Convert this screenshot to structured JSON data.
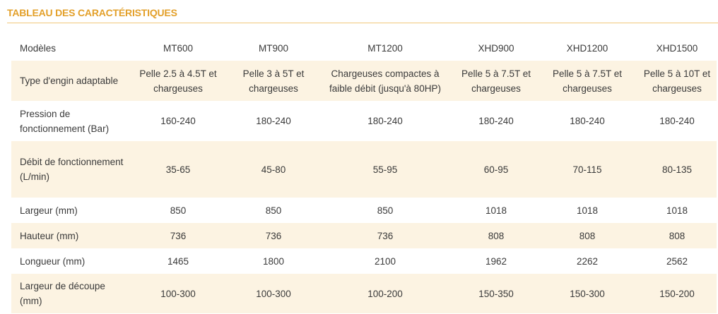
{
  "title": "TABLEAU DES CARACTÉRISTIQUES",
  "table": {
    "header": {
      "label": "Modèles",
      "values": [
        "MT600",
        "MT900",
        "MT1200",
        "XHD900",
        "XHD1200",
        "XHD1500"
      ]
    },
    "rows": [
      {
        "label": "Type d'engin adaptable",
        "values": [
          "Pelle 2.5 à 4.5T et chargeuses",
          "Pelle 3 à 5T et chargeuses",
          "Chargeuses compactes à faible débit (jusqu'à 80HP)",
          "Pelle 5 à 7.5T et chargeuses",
          "Pelle 5 à 7.5T et chargeuses",
          "Pelle 5 à 10T et chargeuses"
        ]
      },
      {
        "label": "Pression de fonctionnement (Bar)",
        "values": [
          "160-240",
          "180-240",
          "180-240",
          "180-240",
          "180-240",
          "180-240"
        ]
      },
      {
        "label": "Débit de fonctionnement (L/min)",
        "values": [
          "35-65",
          "45-80",
          "55-95",
          "60-95",
          "70-115",
          "80-135"
        ]
      },
      {
        "label": "Largeur (mm)",
        "values": [
          "850",
          "850",
          "850",
          "1018",
          "1018",
          "1018"
        ]
      },
      {
        "label": "Hauteur (mm)",
        "values": [
          "736",
          "736",
          "736",
          "808",
          "808",
          "808"
        ]
      },
      {
        "label": "Longueur (mm)",
        "values": [
          "1465",
          "1800",
          "2100",
          "1962",
          "2262",
          "2562"
        ]
      },
      {
        "label": "Largeur de découpe (mm)",
        "values": [
          "100-300",
          "100-300",
          "100-200",
          "150-350",
          "150-300",
          "150-200"
        ]
      }
    ]
  },
  "colors": {
    "accent": "#e3a02a",
    "row_alt": "#fcf3e2",
    "text": "#3a3a3a"
  }
}
